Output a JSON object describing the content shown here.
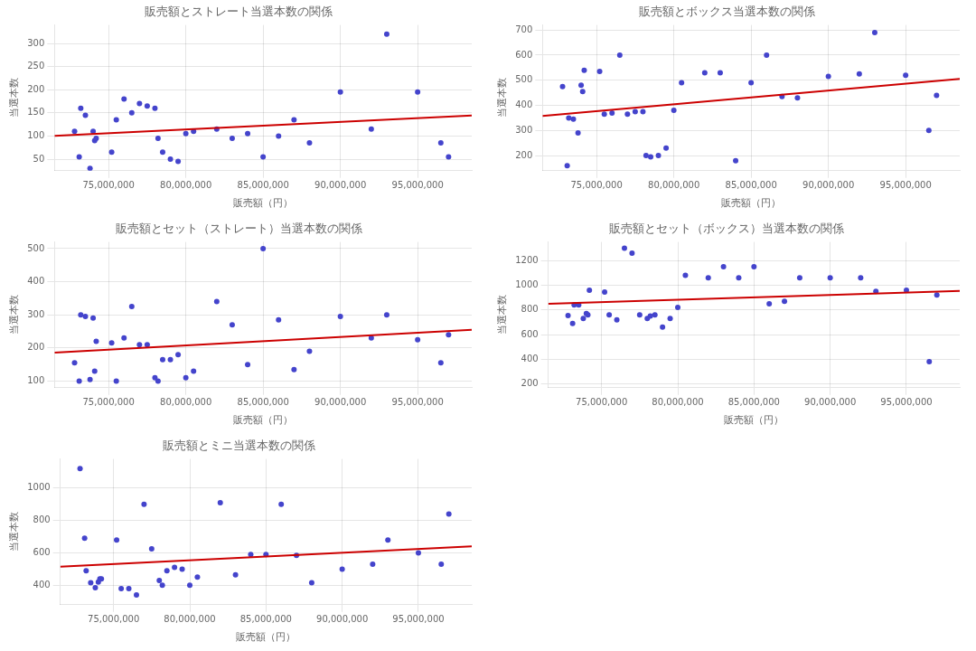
{
  "chart_data": [
    {
      "type": "scatter",
      "title": "販売額とストレート当選本数の関係",
      "xlabel": "販売額（円）",
      "ylabel": "当選本数",
      "xlim": [
        71500000,
        98500000
      ],
      "xticks": [
        {
          "value": 75000000,
          "label": "75,000,000"
        },
        {
          "value": 80000000,
          "label": "80,000,000"
        },
        {
          "value": 85000000,
          "label": "85,000,000"
        },
        {
          "value": 90000000,
          "label": "90,000,000"
        },
        {
          "value": 95000000,
          "label": "95,000,000"
        }
      ],
      "ylim": [
        25,
        340
      ],
      "yticks": [
        50,
        100,
        150,
        200,
        250,
        300
      ],
      "grid": true,
      "series": [
        {
          "type": "scatter",
          "marker": "circle",
          "color": "#4444cc",
          "x": [
            72800000,
            73100000,
            73200000,
            73500000,
            73800000,
            74000000,
            74100000,
            74200000,
            75200000,
            75500000,
            76000000,
            76500000,
            77000000,
            77500000,
            78000000,
            78200000,
            78500000,
            79000000,
            79500000,
            80000000,
            80500000,
            82000000,
            83000000,
            84000000,
            85000000,
            86000000,
            87000000,
            88000000,
            90000000,
            92000000,
            93000000,
            95000000,
            96500000,
            97000000
          ],
          "values": [
            110,
            55,
            160,
            145,
            30,
            110,
            90,
            95,
            65,
            135,
            180,
            150,
            170,
            165,
            160,
            95,
            65,
            50,
            45,
            105,
            110,
            115,
            95,
            105,
            55,
            100,
            135,
            85,
            195,
            115,
            320,
            195,
            85,
            55
          ]
        },
        {
          "type": "line",
          "line_style": "solid",
          "color": "#cc0000",
          "x": [
            71500000,
            98500000
          ],
          "values": [
            100.47,
            144.071
          ]
        }
      ]
    },
    {
      "type": "scatter",
      "title": "販売額とボックス当選本数の関係",
      "xlabel": "販売額（円）",
      "ylabel": "当選本数",
      "xlim": [
        71500000,
        98500000
      ],
      "xticks": [
        {
          "value": 75000000,
          "label": "75,000,000"
        },
        {
          "value": 80000000,
          "label": "80,000,000"
        },
        {
          "value": 85000000,
          "label": "85,000,000"
        },
        {
          "value": 90000000,
          "label": "90,000,000"
        },
        {
          "value": 95000000,
          "label": "95,000,000"
        }
      ],
      "ylim": [
        140,
        720
      ],
      "yticks": [
        200,
        300,
        400,
        500,
        600,
        700
      ],
      "grid": true,
      "series": [
        {
          "type": "scatter",
          "marker": "circle",
          "color": "#4444cc",
          "x": [
            72800000,
            73100000,
            73200000,
            73500000,
            73800000,
            74000000,
            74100000,
            74200000,
            75200000,
            75500000,
            76000000,
            76500000,
            77000000,
            77500000,
            78000000,
            78200000,
            78500000,
            79000000,
            79500000,
            80000000,
            80500000,
            82000000,
            83000000,
            84000000,
            85000000,
            86000000,
            87000000,
            88000000,
            90000000,
            92000000,
            93000000,
            95000000,
            96500000,
            97000000
          ],
          "values": [
            475,
            160,
            350,
            345,
            290,
            480,
            455,
            540,
            535,
            365,
            370,
            600,
            365,
            375,
            375,
            200,
            195,
            200,
            230,
            380,
            490,
            530,
            530,
            180,
            490,
            600,
            435,
            430,
            515,
            525,
            690,
            520,
            300,
            440
          ]
        },
        {
          "type": "line",
          "line_style": "solid",
          "color": "#cc0000",
          "x": [
            71500000,
            98500000
          ],
          "values": [
            357.912,
            505.522
          ]
        }
      ]
    },
    {
      "type": "scatter",
      "title": "販売額とセット（ストレート）当選本数の関係",
      "xlabel": "販売額（円）",
      "ylabel": "当選本数",
      "xlim": [
        71500000,
        98500000
      ],
      "xticks": [
        {
          "value": 75000000,
          "label": "75,000,000"
        },
        {
          "value": 80000000,
          "label": "80,000,000"
        },
        {
          "value": 85000000,
          "label": "85,000,000"
        },
        {
          "value": 90000000,
          "label": "90,000,000"
        },
        {
          "value": 95000000,
          "label": "95,000,000"
        }
      ],
      "ylim": [
        80,
        520
      ],
      "yticks": [
        100,
        200,
        300,
        400,
        500
      ],
      "grid": true,
      "series": [
        {
          "type": "scatter",
          "marker": "circle",
          "color": "#4444cc",
          "x": [
            72800000,
            73100000,
            73200000,
            73500000,
            73800000,
            74000000,
            74100000,
            74200000,
            75200000,
            75500000,
            76000000,
            76500000,
            77000000,
            77500000,
            78000000,
            78200000,
            78500000,
            79000000,
            79500000,
            80000000,
            80500000,
            82000000,
            83000000,
            84000000,
            85000000,
            86000000,
            87000000,
            88000000,
            90000000,
            92000000,
            93000000,
            95000000,
            96500000,
            97000000
          ],
          "values": [
            155,
            100,
            300,
            295,
            105,
            290,
            130,
            220,
            215,
            100,
            230,
            325,
            210,
            210,
            110,
            100,
            165,
            165,
            180,
            110,
            130,
            340,
            270,
            150,
            500,
            285,
            135,
            190,
            295,
            230,
            300,
            225,
            155,
            240
          ]
        },
        {
          "type": "line",
          "line_style": "solid",
          "color": "#cc0000",
          "x": [
            71500000,
            98500000
          ],
          "values": [
            186.167,
            254.6
          ]
        }
      ]
    },
    {
      "type": "scatter",
      "title": "販売額とセット（ボックス）当選本数の関係",
      "xlabel": "販売額（円）",
      "ylabel": "当選本数",
      "xlim": [
        71500000,
        98500000
      ],
      "xticks": [
        {
          "value": 75000000,
          "label": "75,000,000"
        },
        {
          "value": 80000000,
          "label": "80,000,000"
        },
        {
          "value": 85000000,
          "label": "85,000,000"
        },
        {
          "value": 90000000,
          "label": "90,000,000"
        },
        {
          "value": 95000000,
          "label": "95,000,000"
        }
      ],
      "ylim": [
        170,
        1350
      ],
      "yticks": [
        200,
        400,
        600,
        800,
        1000,
        1200
      ],
      "grid": true,
      "series": [
        {
          "type": "scatter",
          "marker": "circle",
          "color": "#4444cc",
          "x": [
            72800000,
            73100000,
            73200000,
            73500000,
            73800000,
            74000000,
            74100000,
            74200000,
            75200000,
            75500000,
            76000000,
            76500000,
            77000000,
            77500000,
            78000000,
            78200000,
            78500000,
            79000000,
            79500000,
            80000000,
            80500000,
            82000000,
            83000000,
            84000000,
            85000000,
            86000000,
            87000000,
            88000000,
            90000000,
            92000000,
            93000000,
            95000000,
            96500000,
            97000000
          ],
          "values": [
            755,
            690,
            840,
            840,
            730,
            770,
            760,
            960,
            945,
            760,
            720,
            1300,
            1260,
            760,
            730,
            750,
            760,
            660,
            730,
            820,
            1080,
            1060,
            1150,
            1060,
            1150,
            850,
            870,
            1060,
            1060,
            1060,
            950,
            960,
            380,
            920
          ]
        },
        {
          "type": "line",
          "line_style": "solid",
          "color": "#cc0000",
          "x": [
            71500000,
            98500000
          ],
          "values": [
            849.492,
            953.937
          ]
        }
      ]
    },
    {
      "type": "scatter",
      "title": "販売額とミニ当選本数の関係",
      "xlabel": "販売額（円）",
      "ylabel": "当選本数",
      "xlim": [
        71500000,
        98500000
      ],
      "xticks": [
        {
          "value": 75000000,
          "label": "75,000,000"
        },
        {
          "value": 80000000,
          "label": "80,000,000"
        },
        {
          "value": 85000000,
          "label": "85,000,000"
        },
        {
          "value": 90000000,
          "label": "90,000,000"
        },
        {
          "value": 95000000,
          "label": "95,000,000"
        }
      ],
      "ylim": [
        280,
        1180
      ],
      "yticks": [
        400,
        600,
        800,
        1000
      ],
      "grid": true,
      "series": [
        {
          "type": "scatter",
          "marker": "circle",
          "color": "#4444cc",
          "x": [
            72800000,
            73100000,
            73200000,
            73500000,
            73800000,
            74000000,
            74100000,
            74200000,
            75200000,
            75500000,
            76000000,
            76500000,
            77000000,
            77500000,
            78000000,
            78200000,
            78500000,
            79000000,
            79500000,
            80000000,
            80500000,
            82000000,
            83000000,
            84000000,
            85000000,
            86000000,
            87000000,
            88000000,
            90000000,
            92000000,
            93000000,
            95000000,
            96500000,
            97000000
          ],
          "values": [
            1120,
            690,
            490,
            415,
            385,
            420,
            440,
            440,
            680,
            380,
            380,
            340,
            900,
            625,
            430,
            400,
            490,
            510,
            500,
            400,
            450,
            910,
            465,
            590,
            590,
            900,
            585,
            415,
            500,
            530,
            680,
            600,
            530,
            840
          ]
        },
        {
          "type": "line",
          "line_style": "solid",
          "color": "#cc0000",
          "x": [
            71500000,
            98500000
          ],
          "values": [
            514.845,
            639.73
          ]
        }
      ]
    }
  ]
}
